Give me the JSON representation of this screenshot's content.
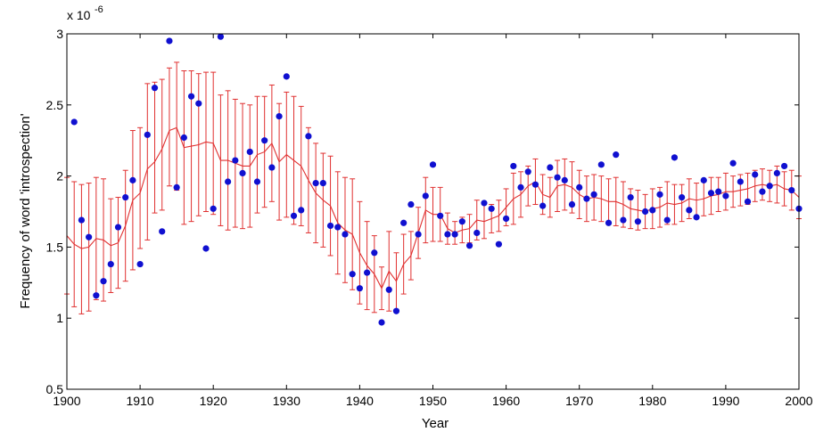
{
  "chart_data": {
    "type": "line",
    "title": "",
    "xlabel": "Year",
    "ylabel": "Frequency of word 'introspection'",
    "y_exponent_label": "x 10",
    "y_exponent_power": "-6",
    "xlim": [
      1900,
      2000
    ],
    "ylim": [
      0.5,
      3
    ],
    "x_ticks": [
      1900,
      1910,
      1920,
      1930,
      1940,
      1950,
      1960,
      1970,
      1980,
      1990,
      2000
    ],
    "x_tick_labels": [
      "1900",
      "1910",
      "1920",
      "1930",
      "1940",
      "1950",
      "1960",
      "1970",
      "1980",
      "1990",
      "2000"
    ],
    "y_ticks": [
      0.5,
      1,
      1.5,
      2,
      2.5,
      3
    ],
    "y_tick_labels": [
      "0.5",
      "1",
      "1.5",
      "2",
      "2.5",
      "3"
    ],
    "grid": false,
    "colors": {
      "points": "#1010d0",
      "line": "#e03030",
      "errorbars": "#e03030",
      "axes": "#000000"
    },
    "series": [
      {
        "type": "scatter",
        "x": [
          1901,
          1902,
          1903,
          1904,
          1905,
          1906,
          1907,
          1908,
          1909,
          1910,
          1911,
          1912,
          1913,
          1914,
          1915,
          1916,
          1917,
          1918,
          1919,
          1920,
          1921,
          1922,
          1923,
          1924,
          1925,
          1926,
          1927,
          1928,
          1929,
          1930,
          1931,
          1932,
          1933,
          1934,
          1935,
          1936,
          1937,
          1938,
          1939,
          1940,
          1941,
          1942,
          1943,
          1944,
          1945,
          1946,
          1947,
          1948,
          1949,
          1950,
          1951,
          1952,
          1953,
          1954,
          1955,
          1956,
          1957,
          1958,
          1959,
          1960,
          1961,
          1962,
          1963,
          1964,
          1965,
          1966,
          1967,
          1968,
          1969,
          1970,
          1971,
          1972,
          1973,
          1974,
          1975,
          1976,
          1977,
          1978,
          1979,
          1980,
          1981,
          1982,
          1983,
          1984,
          1985,
          1986,
          1987,
          1988,
          1989,
          1990,
          1991,
          1992,
          1993,
          1994,
          1995,
          1996,
          1997,
          1998,
          1999,
          2000
        ],
        "values": [
          2.38,
          1.69,
          1.57,
          1.16,
          1.26,
          1.38,
          1.64,
          1.85,
          1.97,
          1.38,
          2.29,
          2.62,
          1.61,
          2.95,
          1.92,
          2.27,
          2.56,
          2.51,
          1.49,
          1.77,
          2.98,
          1.96,
          2.11,
          2.02,
          2.17,
          1.96,
          2.25,
          2.06,
          2.42,
          2.7,
          1.72,
          1.76,
          2.28,
          1.95,
          1.95,
          1.65,
          1.64,
          1.59,
          1.31,
          1.21,
          1.32,
          1.46,
          0.97,
          1.2,
          1.05,
          1.67,
          1.8,
          1.59,
          1.86,
          2.08,
          1.72,
          1.59,
          1.59,
          1.68,
          1.51,
          1.6,
          1.81,
          1.77,
          1.52,
          1.7,
          2.07,
          1.92,
          2.03,
          1.94,
          1.79,
          2.06,
          1.99,
          1.97,
          1.8,
          1.92,
          1.84,
          1.87,
          2.08,
          1.67,
          2.15,
          1.69,
          1.85,
          1.68,
          1.75,
          1.76,
          1.87,
          1.69,
          2.13,
          1.85,
          1.76,
          1.71,
          1.97,
          1.88,
          1.89,
          1.86,
          2.09,
          1.96,
          1.82,
          2.01,
          1.89,
          1.93,
          2.02,
          2.07,
          1.9,
          1.77
        ]
      },
      {
        "type": "line",
        "x": [
          1900,
          1901,
          1902,
          1903,
          1904,
          1905,
          1906,
          1907,
          1908,
          1909,
          1910,
          1911,
          1912,
          1913,
          1914,
          1915,
          1916,
          1917,
          1918,
          1919,
          1920,
          1921,
          1922,
          1923,
          1924,
          1925,
          1926,
          1927,
          1928,
          1929,
          1930,
          1931,
          1932,
          1933,
          1934,
          1935,
          1936,
          1937,
          1938,
          1939,
          1940,
          1941,
          1942,
          1943,
          1944,
          1945,
          1946,
          1947,
          1948,
          1949,
          1950,
          1951,
          1952,
          1953,
          1954,
          1955,
          1956,
          1957,
          1958,
          1959,
          1960,
          1961,
          1962,
          1963,
          1964,
          1965,
          1966,
          1967,
          1968,
          1969,
          1970,
          1971,
          1972,
          1973,
          1974,
          1975,
          1976,
          1977,
          1978,
          1979,
          1980,
          1981,
          1982,
          1983,
          1984,
          1985,
          1986,
          1987,
          1988,
          1989,
          1990,
          1991,
          1992,
          1993,
          1994,
          1995,
          1996,
          1997,
          1998,
          1999,
          2000
        ],
        "values": [
          1.58,
          1.52,
          1.49,
          1.5,
          1.56,
          1.55,
          1.51,
          1.53,
          1.65,
          1.83,
          1.88,
          2.05,
          2.1,
          2.19,
          2.32,
          2.34,
          2.2,
          2.21,
          2.22,
          2.24,
          2.23,
          2.11,
          2.11,
          2.09,
          2.07,
          2.07,
          2.15,
          2.17,
          2.23,
          2.1,
          2.15,
          2.11,
          2.07,
          1.97,
          1.88,
          1.83,
          1.79,
          1.67,
          1.62,
          1.59,
          1.46,
          1.37,
          1.31,
          1.21,
          1.33,
          1.26,
          1.38,
          1.44,
          1.6,
          1.76,
          1.73,
          1.73,
          1.63,
          1.6,
          1.62,
          1.63,
          1.69,
          1.68,
          1.7,
          1.72,
          1.78,
          1.84,
          1.87,
          1.93,
          1.96,
          1.87,
          1.85,
          1.93,
          1.94,
          1.92,
          1.87,
          1.84,
          1.85,
          1.84,
          1.82,
          1.82,
          1.8,
          1.77,
          1.76,
          1.75,
          1.77,
          1.78,
          1.81,
          1.8,
          1.81,
          1.84,
          1.83,
          1.84,
          1.86,
          1.87,
          1.89,
          1.89,
          1.9,
          1.91,
          1.93,
          1.94,
          1.93,
          1.94,
          1.91,
          1.9,
          1.85
        ]
      }
    ],
    "errorbars": {
      "x": [
        1900,
        1901,
        1902,
        1903,
        1904,
        1905,
        1906,
        1907,
        1908,
        1909,
        1910,
        1911,
        1912,
        1913,
        1914,
        1915,
        1916,
        1917,
        1918,
        1919,
        1920,
        1921,
        1922,
        1923,
        1924,
        1925,
        1926,
        1927,
        1928,
        1929,
        1930,
        1931,
        1932,
        1933,
        1934,
        1935,
        1936,
        1937,
        1938,
        1939,
        1940,
        1941,
        1942,
        1943,
        1944,
        1945,
        1946,
        1947,
        1948,
        1949,
        1950,
        1951,
        1952,
        1953,
        1954,
        1955,
        1956,
        1957,
        1958,
        1959,
        1960,
        1961,
        1962,
        1963,
        1964,
        1965,
        1966,
        1967,
        1968,
        1969,
        1970,
        1971,
        1972,
        1973,
        1974,
        1975,
        1976,
        1977,
        1978,
        1979,
        1980,
        1981,
        1982,
        1983,
        1984,
        1985,
        1986,
        1987,
        1988,
        1989,
        1990,
        1991,
        1992,
        1993,
        1994,
        1995,
        1996,
        1997,
        1998,
        1999,
        2000
      ],
      "low": [
        1.17,
        1.08,
        1.03,
        1.05,
        1.13,
        1.12,
        1.18,
        1.21,
        1.26,
        1.34,
        1.49,
        1.55,
        1.74,
        1.76,
        1.93,
        1.9,
        1.66,
        1.68,
        1.72,
        1.75,
        1.73,
        1.65,
        1.62,
        1.64,
        1.63,
        1.64,
        1.74,
        1.78,
        1.82,
        1.69,
        1.71,
        1.66,
        1.65,
        1.6,
        1.53,
        1.5,
        1.44,
        1.31,
        1.25,
        1.2,
        1.1,
        1.06,
        1.04,
        1.06,
        1.05,
        1.06,
        1.17,
        1.27,
        1.42,
        1.53,
        1.54,
        1.54,
        1.52,
        1.52,
        1.53,
        1.53,
        1.55,
        1.56,
        1.6,
        1.61,
        1.65,
        1.66,
        1.71,
        1.79,
        1.8,
        1.73,
        1.71,
        1.75,
        1.76,
        1.74,
        1.7,
        1.68,
        1.69,
        1.68,
        1.66,
        1.65,
        1.64,
        1.63,
        1.62,
        1.63,
        1.63,
        1.64,
        1.66,
        1.66,
        1.68,
        1.7,
        1.71,
        1.72,
        1.73,
        1.75,
        1.76,
        1.78,
        1.79,
        1.8,
        1.82,
        1.83,
        1.82,
        1.81,
        1.79,
        1.76,
        1.7
      ],
      "high": [
        1.99,
        1.96,
        1.94,
        1.95,
        1.99,
        1.98,
        1.84,
        1.85,
        2.04,
        2.32,
        2.34,
        2.65,
        2.66,
        2.68,
        2.76,
        2.8,
        2.74,
        2.74,
        2.72,
        2.73,
        2.73,
        2.57,
        2.6,
        2.54,
        2.51,
        2.5,
        2.56,
        2.56,
        2.64,
        2.51,
        2.59,
        2.56,
        2.49,
        2.34,
        2.23,
        2.16,
        2.14,
        2.03,
        1.99,
        1.98,
        1.82,
        1.68,
        1.58,
        1.36,
        1.61,
        1.46,
        1.59,
        1.61,
        1.78,
        1.99,
        1.92,
        1.92,
        1.74,
        1.68,
        1.71,
        1.73,
        1.83,
        1.8,
        1.8,
        1.83,
        1.91,
        2.02,
        2.03,
        2.07,
        2.12,
        2.01,
        1.99,
        2.11,
        2.12,
        2.1,
        2.04,
        2.0,
        2.01,
        2.0,
        1.98,
        1.99,
        1.96,
        1.91,
        1.9,
        1.87,
        1.91,
        1.92,
        1.96,
        1.94,
        1.94,
        1.98,
        1.95,
        1.96,
        1.99,
        1.99,
        2.02,
        2.0,
        2.01,
        2.02,
        2.04,
        2.05,
        2.04,
        2.07,
        2.03,
        2.04,
        2.0
      ]
    }
  }
}
